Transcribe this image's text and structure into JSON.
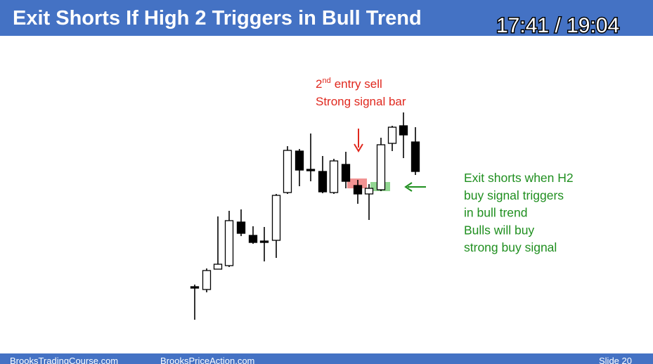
{
  "header": {
    "title": "Exit Shorts If High 2 Triggers in Bull Trend",
    "timer": "17:41 / 19:04"
  },
  "sell_note": {
    "ordinal": "2",
    "ordinal_suffix": "nd",
    "rest": "entry sell",
    "line2": "Strong signal bar"
  },
  "exit_note": {
    "lines": [
      "Exit shorts when H2",
      "buy signal triggers",
      "in bull trend",
      "Bulls will buy",
      "strong buy signal"
    ]
  },
  "footer": {
    "left": "BrooksTradingCourse.com",
    "center": "BrooksPriceAction.com",
    "slide": "Slide  20"
  }
}
